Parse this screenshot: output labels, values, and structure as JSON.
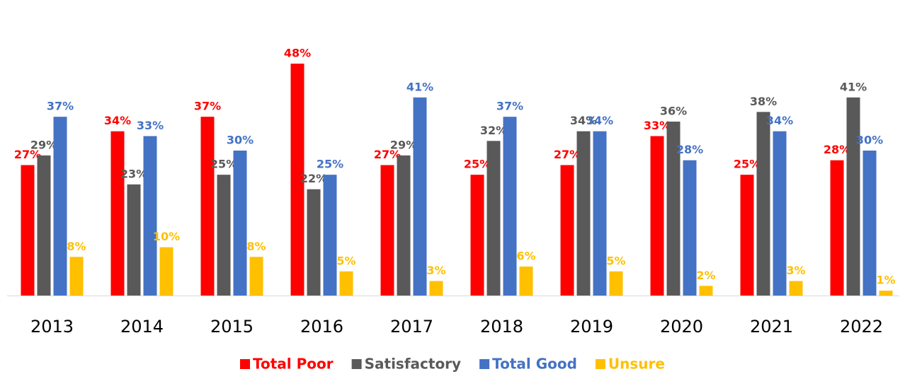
{
  "chart_data": {
    "type": "bar",
    "categories": [
      "2013",
      "2014",
      "2015",
      "2016",
      "2017",
      "2018",
      "2019",
      "2020",
      "2021",
      "2022"
    ],
    "series": [
      {
        "name": "Total Poor",
        "color": "#ff0000",
        "values": [
          27,
          34,
          37,
          48,
          27,
          25,
          27,
          33,
          25,
          28
        ],
        "value_labels": [
          "27%",
          "34%",
          "37%",
          "48%",
          "27%",
          "25%",
          "27%",
          "33%",
          "25%",
          "28%"
        ]
      },
      {
        "name": "Satisfactory",
        "color": "#595959",
        "values": [
          29,
          23,
          25,
          22,
          29,
          32,
          34,
          36,
          38,
          41
        ],
        "value_labels": [
          "29%",
          "23%",
          "25%",
          "22%",
          "29%",
          "32%",
          "34%",
          "36%",
          "38%",
          "41%"
        ]
      },
      {
        "name": "Total Good",
        "color": "#4472c4",
        "values": [
          37,
          33,
          30,
          25,
          41,
          37,
          34,
          28,
          34,
          30
        ],
        "value_labels": [
          "37%",
          "33%",
          "30%",
          "25%",
          "41%",
          "37%",
          "34%",
          "28%",
          "34%",
          "30%"
        ]
      },
      {
        "name": "Unsure",
        "color": "#ffc000",
        "values": [
          8,
          10,
          8,
          5,
          3,
          6,
          5,
          2,
          3,
          1
        ],
        "value_labels": [
          "8%",
          "10%",
          "8%",
          "5%",
          "3%",
          "6%",
          "5%",
          "2%",
          "3%",
          "1%"
        ]
      }
    ]
  }
}
